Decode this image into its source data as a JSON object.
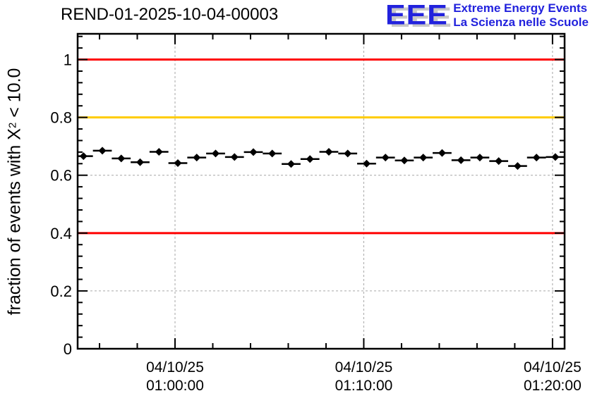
{
  "logo": {
    "letters": "EEE",
    "line1": "Extreme Energy Events",
    "line2": "La Scienza nelle Scuole"
  },
  "colors": {
    "logo_blue": "#2222dd",
    "logo_shadow": "#c8c8c8",
    "grid": "#a6a6a6",
    "axis": "#000000",
    "threshold_red": "#ff0000",
    "threshold_orange": "#ffcc00",
    "marker": "#000000"
  },
  "chart_data": {
    "type": "scatter",
    "title": "REND-01-2025-10-04-00003",
    "ylabel": {
      "text": "fraction of events with X^2 < 10.0",
      "prefix": "fraction of events with X",
      "sup": "2",
      "suffix": " < 10.0"
    },
    "grid": true,
    "legend": "none",
    "x_axis": {
      "unit": "minutes relative to 04/10/25 01:00:00",
      "min": -5.16,
      "max": 20.64,
      "minor_tick_step_minutes": 2,
      "major_tick_step_minutes": 10,
      "gridlines_at_minutes": [
        0,
        10,
        20
      ],
      "tick_labels": [
        {
          "t": 0,
          "line1": "04/10/25",
          "line2": "01:00:00"
        },
        {
          "t": 10,
          "line1": "04/10/25",
          "line2": "01:10:00"
        },
        {
          "t": 20,
          "line1": "04/10/25",
          "line2": "01:20:00"
        }
      ]
    },
    "y_axis": {
      "min": 0,
      "max": 1.089,
      "major_ticks": [
        0,
        0.2,
        0.4,
        0.6,
        0.8,
        1.0
      ],
      "tick_labels": [
        "0",
        "0.2",
        "0.4",
        "0.6",
        "0.8",
        "1"
      ],
      "minor_tick_step": 0.04,
      "gridline_values": [
        0.2,
        0.4,
        0.6,
        0.8,
        1.0
      ]
    },
    "reference_lines": [
      {
        "y": 1.0,
        "color": "#ff0000",
        "meaning": "upper threshold"
      },
      {
        "y": 0.8,
        "color": "#ffcc00",
        "meaning": "warning threshold"
      },
      {
        "y": 0.4,
        "color": "#ff0000",
        "meaning": "lower threshold"
      }
    ],
    "series": [
      {
        "name": "fraction of events with chi2 < 10",
        "marker": "diamond",
        "color": "#000000",
        "bin_halfwidth_minutes": 0.5,
        "points_t_minutes_and_value": [
          [
            -4.85,
            0.666
          ],
          [
            -3.85,
            0.685
          ],
          [
            -2.85,
            0.658
          ],
          [
            -1.85,
            0.645
          ],
          [
            -0.85,
            0.681
          ],
          [
            0.15,
            0.642
          ],
          [
            1.15,
            0.661
          ],
          [
            2.15,
            0.675
          ],
          [
            3.15,
            0.663
          ],
          [
            4.15,
            0.68
          ],
          [
            5.15,
            0.675
          ],
          [
            6.15,
            0.639
          ],
          [
            7.15,
            0.656
          ],
          [
            8.15,
            0.681
          ],
          [
            9.15,
            0.675
          ],
          [
            10.15,
            0.64
          ],
          [
            11.15,
            0.661
          ],
          [
            12.15,
            0.651
          ],
          [
            13.15,
            0.661
          ],
          [
            14.15,
            0.677
          ],
          [
            15.15,
            0.652
          ],
          [
            16.15,
            0.661
          ],
          [
            17.15,
            0.649
          ],
          [
            18.15,
            0.632
          ],
          [
            19.15,
            0.661
          ],
          [
            20.15,
            0.663
          ]
        ]
      }
    ]
  }
}
